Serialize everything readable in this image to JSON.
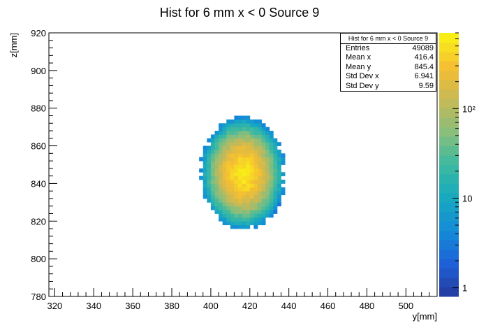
{
  "chart_data": {
    "type": "heatmap",
    "title": "Hist for 6 mm x < 0 Source 9",
    "xlabel": "y[mm]",
    "ylabel": "z[mm]",
    "xlim": [
      317,
      516
    ],
    "ylim": [
      780,
      920
    ],
    "x_ticks": [
      320,
      340,
      360,
      380,
      400,
      420,
      440,
      460,
      480,
      500
    ],
    "y_ticks": [
      780,
      800,
      820,
      840,
      860,
      880,
      900,
      920
    ],
    "bin_width": 2,
    "peak": {
      "x": 416.4,
      "y": 845.4,
      "sigma_x": 6.941,
      "sigma_y": 9.59
    },
    "colorbar": {
      "scale": "log",
      "min": 0.8,
      "max": 700,
      "ticks": [
        1,
        10,
        100
      ],
      "tick_labels": [
        "1",
        "10",
        "10²"
      ]
    },
    "stats": {
      "title": "Hist for 6 mm x < 0 Source 9",
      "entries_label": "Entries",
      "entries": "49089",
      "mean_x_label": "Mean x",
      "mean_x": "416.4",
      "mean_y_label": "Mean y",
      "mean_y": "845.4",
      "std_x_label": "Std Dev x",
      "std_x": "6.941",
      "std_y_label": "Std Dev y",
      "std_y": "9.59"
    }
  }
}
